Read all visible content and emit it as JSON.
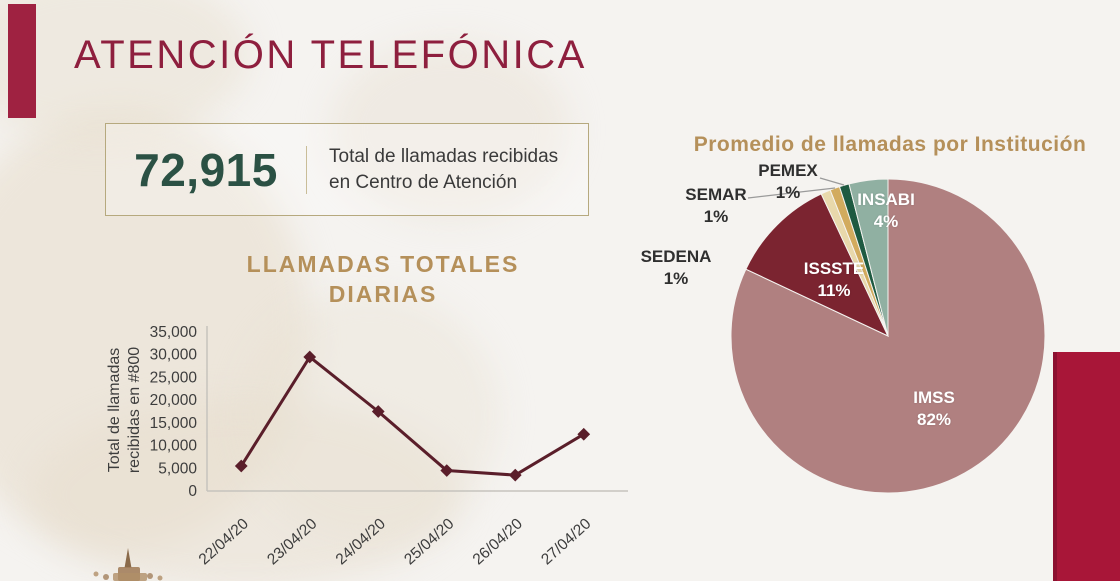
{
  "page": {
    "title": "ATENCIÓN TELEFÓNICA"
  },
  "stat_box": {
    "value": "72,915",
    "description_line1": "Total de llamadas recibidas",
    "description_line2": "en Centro de Atención"
  },
  "chart_data": [
    {
      "type": "line",
      "title": "LLAMADAS TOTALES DIARIAS",
      "title_lines": [
        "LLAMADAS TOTALES",
        "DIARIAS"
      ],
      "ylabel": "Total de llamadas recibidas en #800",
      "ylabel_lines": [
        "Total de llamadas",
        "recibidas en #800"
      ],
      "x": [
        "22/04/20",
        "23/04/20",
        "24/04/20",
        "25/04/20",
        "26/04/20",
        "27/04/20"
      ],
      "values": [
        5500,
        29500,
        17500,
        4500,
        3500,
        12500
      ],
      "ylim": [
        0,
        35000
      ],
      "ytick_step": 5000,
      "yticks": [
        "0",
        "5,000",
        "10,000",
        "15,000",
        "20,000",
        "25,000",
        "30,000",
        "35,000"
      ],
      "line_color": "#5a1e2a",
      "marker": "diamond",
      "grid": false
    },
    {
      "type": "pie",
      "title": "Promedio de llamadas por Institución",
      "start_angle_deg": 0,
      "direction": "clockwise",
      "slices": [
        {
          "label": "IMSS",
          "pct": 82,
          "pct_label": "82%",
          "color": "#b08080",
          "label_style": "inside"
        },
        {
          "label": "ISSSTE",
          "pct": 11,
          "pct_label": "11%",
          "color": "#7b2430",
          "label_style": "inside"
        },
        {
          "label": "SEDENA",
          "pct": 1,
          "pct_label": "1%",
          "color": "#e8d8ab",
          "label_style": "outside"
        },
        {
          "label": "SEMAR",
          "pct": 1,
          "pct_label": "1%",
          "color": "#d2ab5e",
          "label_style": "outside"
        },
        {
          "label": "PEMEX",
          "pct": 1,
          "pct_label": "1%",
          "color": "#1e5a41",
          "label_style": "outside"
        },
        {
          "label": "INSABI",
          "pct": 4,
          "pct_label": "4%",
          "color": "#90b0a2",
          "label_style": "inside"
        }
      ]
    }
  ],
  "colors": {
    "background": "#f5f3f0",
    "accent_bar": "#9f2241",
    "title_red": "#8e1f3e",
    "gold_heading": "#b5905a",
    "stat_green": "#2b5144",
    "text_dark": "#3a3a3a",
    "box_border": "#b6a97e",
    "axis_gray": "#c6c3bd",
    "leader_line_gray": "#9a9a9a",
    "side_block": "#a81638"
  }
}
